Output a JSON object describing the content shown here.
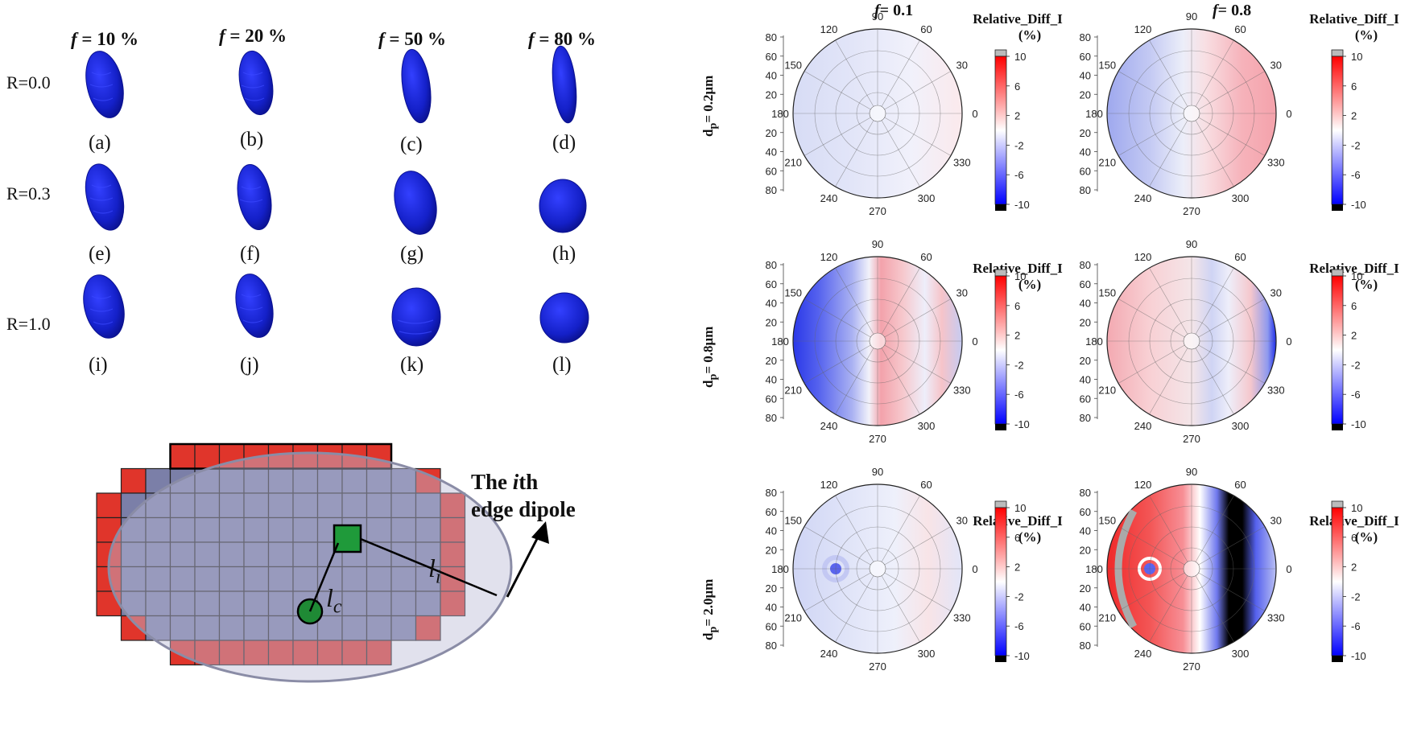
{
  "morphology": {
    "columns": [
      {
        "prefix": "f",
        "label": " = 10 %"
      },
      {
        "prefix": "f",
        "label": " = 20 %"
      },
      {
        "prefix": "f",
        "label": " = 50 %"
      },
      {
        "prefix": "f",
        "label": " = 80 %"
      }
    ],
    "rows": [
      "R=0.0",
      "R=0.3",
      "R=1.0"
    ],
    "panel_labels": [
      "(a)",
      "(b)",
      "(c)",
      "(d)",
      "(e)",
      "(f)",
      "(g)",
      "(h)",
      "(i)",
      "(j)",
      "(k)",
      "(l)"
    ],
    "particle_color": "#1420c8"
  },
  "dipole_diagram": {
    "note_line1_a": "The ",
    "note_line1_i": "i",
    "note_line1_b": "th",
    "note_line2": "edge dipole",
    "label_center": "l",
    "label_center_sub": "c",
    "label_edge": "l",
    "label_edge_sub": "i",
    "edge_color": "#e0352b",
    "inner_color": "#7b7fa8",
    "ith_color": "#1f9a3a",
    "center_color": "#1f8a35"
  },
  "polar_figure": {
    "column_titles": [
      {
        "prefix": "f",
        "label": "= 0.1"
      },
      {
        "prefix": "f",
        "label": "= 0.8"
      }
    ],
    "row_labels": [
      {
        "main": "d",
        "sub": "p",
        "rest": "= 0.2μm"
      },
      {
        "main": "d",
        "sub": "p",
        "rest": "= 0.8μm"
      },
      {
        "main": "d",
        "sub": "p",
        "rest": "= 2.0μm"
      }
    ],
    "colorbar_title_line1": "Relative_Diff_I",
    "colorbar_title_line2": "(%)",
    "colorbar_ticks": [
      "10",
      "6",
      "2",
      "-2",
      "-6",
      "-10"
    ],
    "radial_ticks": [
      "80",
      "60",
      "40",
      "20",
      "",
      "20",
      "40",
      "60",
      "80"
    ],
    "angle_labels": [
      "0",
      "30",
      "60",
      "90",
      "120",
      "150",
      "180",
      "210",
      "240",
      "270",
      "300",
      "330"
    ]
  },
  "chart_data": [
    {
      "type": "heatmap",
      "projection": "polar",
      "title": "",
      "variable": "Relative_Diff_I",
      "unit": "%",
      "color_scale": {
        "min": -10,
        "max": 10,
        "ticks": [
          10,
          6,
          2,
          -2,
          -6,
          -10
        ],
        "colors": [
          "#0000ff",
          "#ffffff",
          "#ff0000"
        ]
      },
      "radial_range": [
        0,
        90
      ],
      "panels": [
        {
          "f": 0.1,
          "dp_um": 0.2,
          "value_range_approx": [
            -2,
            1
          ]
        },
        {
          "f": 0.8,
          "dp_um": 0.2,
          "value_range_approx": [
            -4,
            5
          ]
        },
        {
          "f": 0.1,
          "dp_um": 0.8,
          "value_range_approx": [
            -10,
            6
          ]
        },
        {
          "f": 0.8,
          "dp_um": 0.8,
          "value_range_approx": [
            -10,
            4
          ]
        },
        {
          "f": 0.1,
          "dp_um": 2.0,
          "value_range_approx": [
            -6,
            2
          ]
        },
        {
          "f": 0.8,
          "dp_um": 2.0,
          "value_range_approx": [
            -10,
            10
          ]
        }
      ]
    }
  ]
}
